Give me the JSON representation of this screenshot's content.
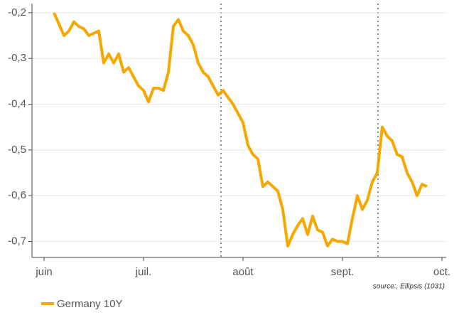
{
  "chart_data": {
    "type": "line",
    "categories": [
      "juin",
      null,
      null,
      null,
      null,
      null,
      null,
      null,
      null,
      null,
      null,
      null,
      null,
      null,
      null,
      null,
      null,
      null,
      null,
      null,
      "juil.",
      null,
      null,
      null,
      null,
      null,
      null,
      null,
      null,
      null,
      null,
      null,
      null,
      null,
      null,
      null,
      null,
      null,
      null,
      null,
      "août",
      null,
      null,
      null,
      null,
      null,
      null,
      null,
      null,
      null,
      null,
      null,
      null,
      null,
      null,
      null,
      null,
      null,
      null,
      null,
      "sept.",
      null,
      null,
      null,
      null,
      null,
      null,
      null,
      null,
      null,
      null,
      null,
      null,
      null,
      null,
      null,
      null,
      null,
      null,
      null,
      "oct."
    ],
    "series": [
      {
        "name": "Germany 10Y",
        "color": "#f7a800",
        "values": [
          null,
          null,
          -0.2,
          -0.225,
          -0.25,
          -0.24,
          -0.22,
          -0.23,
          -0.235,
          -0.25,
          -0.245,
          -0.24,
          -0.31,
          -0.29,
          -0.31,
          -0.29,
          -0.33,
          -0.32,
          -0.34,
          -0.36,
          -0.37,
          -0.395,
          -0.365,
          -0.365,
          -0.37,
          -0.33,
          -0.23,
          -0.215,
          -0.24,
          -0.25,
          -0.27,
          -0.31,
          -0.33,
          -0.34,
          -0.36,
          -0.38,
          -0.37,
          -0.385,
          -0.4,
          -0.42,
          -0.44,
          -0.49,
          -0.51,
          -0.52,
          -0.58,
          -0.57,
          -0.58,
          -0.59,
          -0.63,
          -0.71,
          -0.685,
          -0.665,
          -0.65,
          -0.685,
          -0.645,
          -0.675,
          -0.68,
          -0.71,
          -0.695,
          -0.7,
          -0.7,
          -0.705,
          -0.65,
          -0.6,
          -0.63,
          -0.61,
          -0.57,
          -0.55,
          -0.45,
          -0.47,
          -0.48,
          -0.51,
          -0.515,
          -0.55,
          -0.57,
          -0.6,
          -0.575,
          -0.58,
          null,
          null,
          null
        ]
      }
    ],
    "ylim": [
      -0.735,
      -0.18
    ],
    "yticks": [
      {
        "value": -0.2,
        "label": "-0,2"
      },
      {
        "value": -0.3,
        "label": "-0,3"
      },
      {
        "value": -0.4,
        "label": "-0,4"
      },
      {
        "value": -0.5,
        "label": "-0,5"
      },
      {
        "value": -0.6,
        "label": "-0,6"
      },
      {
        "value": -0.7,
        "label": "-0,7"
      }
    ],
    "grid": true,
    "source": "source:, Ellipsis (1031)",
    "legend": "bottom-left"
  }
}
